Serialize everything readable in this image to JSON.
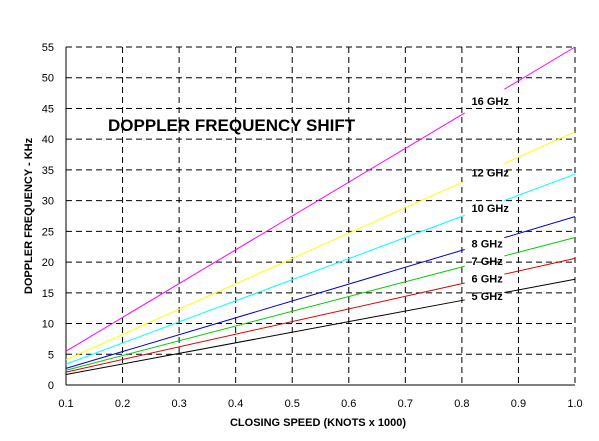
{
  "chart_data": {
    "type": "line",
    "title": "DOPPLER FREQUENCY SHIFT",
    "xlabel": "CLOSING SPEED (KNOTS x 1000)",
    "ylabel": "DOPPLER FREQUENCY  -  KHz",
    "xlim": [
      0.1,
      1.0
    ],
    "ylim": [
      0,
      55
    ],
    "x_ticks": [
      "0.1",
      "0.2",
      "0.3",
      "0.4",
      "0.5",
      "0.6",
      "0.7",
      "0.8",
      "0.9",
      "1.0"
    ],
    "y_ticks": [
      "0",
      "5",
      "10",
      "15",
      "20",
      "25",
      "30",
      "35",
      "40",
      "45",
      "50",
      "55"
    ],
    "grid": true,
    "grid_style": "dashed",
    "series": [
      {
        "name": "16 GHz",
        "color": "#ff00ff",
        "x": [
          0.1,
          1.0
        ],
        "values": [
          5.5,
          55.0
        ]
      },
      {
        "name": "12 GHz",
        "color": "#ffff00",
        "x": [
          0.1,
          1.0
        ],
        "values": [
          4.1,
          41.2
        ]
      },
      {
        "name": "10 GHz",
        "color": "#00ffff",
        "x": [
          0.1,
          1.0
        ],
        "values": [
          3.4,
          34.3
        ]
      },
      {
        "name": "8 GHz",
        "color": "#0000cc",
        "x": [
          0.1,
          1.0
        ],
        "values": [
          2.7,
          27.4
        ]
      },
      {
        "name": "7 GHz",
        "color": "#00cc00",
        "x": [
          0.1,
          1.0
        ],
        "values": [
          2.4,
          24.0
        ]
      },
      {
        "name": "6 GHz",
        "color": "#dd0000",
        "x": [
          0.1,
          1.0
        ],
        "values": [
          2.1,
          20.6
        ]
      },
      {
        "name": "5 GHz",
        "color": "#000000",
        "x": [
          0.1,
          1.0
        ],
        "values": [
          1.7,
          17.2
        ]
      }
    ]
  }
}
